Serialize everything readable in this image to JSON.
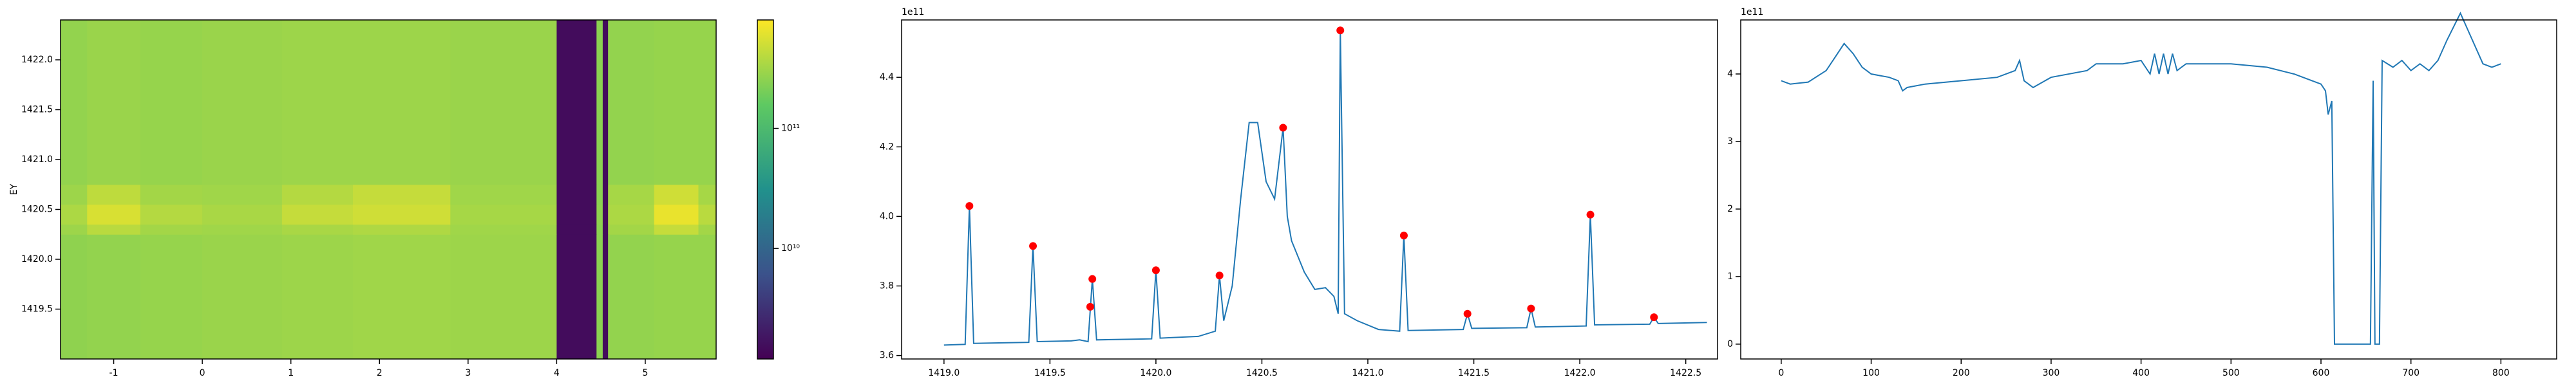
{
  "chart_data": [
    {
      "type": "heatmap",
      "ylabel": "EY",
      "x_edges": [
        -1.6,
        -1.3,
        -0.7,
        0.0,
        0.9,
        1.7,
        2.8,
        4.0,
        4.45,
        4.52,
        4.58,
        5.1,
        5.6,
        5.8
      ],
      "y_edges": [
        1419.0,
        1420.25,
        1420.35,
        1420.55,
        1420.75,
        1422.4
      ],
      "z": [
        [
          260000000000.0,
          270000000000.0,
          280000000000.0,
          290000000000.0,
          300000000000.0,
          310000000000.0,
          300000000000.0,
          1500000000.0,
          250000000000.0,
          1500000000.0,
          270000000000.0,
          280000000000.0,
          280000000000.0
        ],
        [
          300000000000.0,
          400000000000.0,
          320000000000.0,
          310000000000.0,
          340000000000.0,
          360000000000.0,
          310000000000.0,
          1500000000.0,
          250000000000.0,
          1500000000.0,
          320000000000.0,
          450000000000.0,
          320000000000.0
        ],
        [
          350000000000.0,
          550000000000.0,
          380000000000.0,
          340000000000.0,
          450000000000.0,
          500000000000.0,
          330000000000.0,
          1500000000.0,
          260000000000.0,
          1500000000.0,
          350000000000.0,
          650000000000.0,
          400000000000.0
        ],
        [
          300000000000.0,
          420000000000.0,
          320000000000.0,
          310000000000.0,
          380000000000.0,
          450000000000.0,
          310000000000.0,
          1500000000.0,
          250000000000.0,
          1500000000.0,
          330000000000.0,
          500000000000.0,
          330000000000.0
        ],
        [
          270000000000.0,
          290000000000.0,
          280000000000.0,
          290000000000.0,
          300000000000.0,
          300000000000.0,
          290000000000.0,
          1500000000.0,
          250000000000.0,
          1500000000.0,
          270000000000.0,
          280000000000.0,
          280000000000.0
        ]
      ],
      "xlim": [
        -1.6,
        5.8
      ],
      "xticks": [
        -1,
        0,
        1,
        2,
        3,
        4,
        5
      ],
      "ylim": [
        1419.0,
        1422.4
      ],
      "yticks": [
        1419.5,
        {
          "value": 1420,
          "label": "1420.0"
        },
        1420.5,
        {
          "value": 1421,
          "label": "1421.0"
        },
        1421.5,
        {
          "value": 1422,
          "label": "1422.0"
        }
      ],
      "colormap": "viridis",
      "color_scale": "log",
      "clim": [
        1200000000.0,
        800000000000.0
      ],
      "colorbar_ticks": [
        {
          "value": 10000000000.0,
          "label": "10¹⁰"
        },
        {
          "value": 100000000000.0,
          "label": "10¹¹"
        }
      ]
    },
    {
      "type": "line",
      "offset_label": "1e11",
      "series": [
        {
          "color": "#1f77b4",
          "x": [
            1419.0,
            1419.1,
            1419.12,
            1419.14,
            1419.4,
            1419.42,
            1419.44,
            1419.6,
            1419.64,
            1419.68,
            1419.7,
            1419.72,
            1419.98,
            1420.0,
            1420.02,
            1420.2,
            1420.28,
            1420.3,
            1420.32,
            1420.36,
            1420.4,
            1420.44,
            1420.48,
            1420.52,
            1420.56,
            1420.6,
            1420.62,
            1420.64,
            1420.7,
            1420.75,
            1420.8,
            1420.84,
            1420.86,
            1420.87,
            1420.89,
            1420.95,
            1421.05,
            1421.15,
            1421.17,
            1421.19,
            1421.45,
            1421.47,
            1421.49,
            1421.75,
            1421.77,
            1421.79,
            1422.03,
            1422.05,
            1422.07,
            1422.33,
            1422.35,
            1422.37,
            1422.6
          ],
          "values": [
            3.63,
            3.632,
            4.03,
            3.635,
            3.638,
            3.915,
            3.64,
            3.642,
            3.645,
            3.64,
            3.82,
            3.645,
            3.648,
            3.845,
            3.65,
            3.655,
            3.67,
            3.83,
            3.7,
            3.8,
            4.05,
            4.27,
            4.27,
            4.1,
            4.05,
            4.255,
            4.0,
            3.93,
            3.84,
            3.79,
            3.795,
            3.77,
            3.72,
            4.535,
            3.72,
            3.7,
            3.675,
            3.67,
            3.945,
            3.672,
            3.675,
            3.72,
            3.678,
            3.68,
            3.735,
            3.682,
            3.685,
            4.005,
            3.688,
            3.69,
            3.71,
            3.692,
            3.695
          ]
        }
      ],
      "markers": {
        "color": "#ff0000",
        "x": [
          1419.12,
          1419.42,
          1419.69,
          1419.7,
          1420.0,
          1420.3,
          1420.6,
          1420.87,
          1421.17,
          1421.47,
          1421.77,
          1422.05,
          1422.35
        ],
        "values": [
          4.03,
          3.915,
          3.74,
          3.82,
          3.845,
          3.83,
          4.255,
          4.535,
          3.945,
          3.72,
          3.735,
          4.005,
          3.71
        ]
      },
      "xlim": [
        1418.8,
        1422.65
      ],
      "xticks": [
        {
          "value": 1419,
          "label": "1419.0"
        },
        1419.5,
        {
          "value": 1420,
          "label": "1420.0"
        },
        1420.5,
        {
          "value": 1421,
          "label": "1421.0"
        },
        1421.5,
        {
          "value": 1422,
          "label": "1422.0"
        },
        1422.5
      ],
      "ylim": [
        3.59,
        4.565
      ],
      "yticks": [
        3.6,
        3.8,
        {
          "value": 4,
          "label": "4.0"
        },
        4.2,
        4.4
      ]
    },
    {
      "type": "line",
      "offset_label": "1e11",
      "series": [
        {
          "color": "#1f77b4",
          "x": [
            0,
            10,
            30,
            50,
            60,
            70,
            80,
            90,
            100,
            120,
            130,
            135,
            140,
            160,
            200,
            240,
            260,
            265,
            270,
            280,
            300,
            340,
            350,
            380,
            400,
            410,
            415,
            420,
            425,
            430,
            435,
            440,
            450,
            500,
            540,
            570,
            600,
            605,
            608,
            612,
            615,
            655,
            658,
            660,
            665,
            668,
            680,
            690,
            700,
            710,
            720,
            730,
            740,
            755,
            765,
            780,
            790,
            800
          ],
          "values": [
            3.9,
            3.85,
            3.88,
            4.05,
            4.25,
            4.45,
            4.3,
            4.1,
            4.0,
            3.95,
            3.9,
            3.75,
            3.8,
            3.85,
            3.9,
            3.95,
            4.05,
            4.2,
            3.9,
            3.8,
            3.95,
            4.05,
            4.15,
            4.15,
            4.2,
            4.0,
            4.3,
            4.0,
            4.3,
            4.0,
            4.3,
            4.05,
            4.15,
            4.15,
            4.1,
            4.0,
            3.85,
            3.75,
            3.4,
            3.6,
            0.0,
            0.0,
            3.9,
            0.0,
            0.0,
            4.2,
            4.1,
            4.2,
            4.05,
            4.15,
            4.05,
            4.2,
            4.5,
            4.9,
            4.6,
            4.15,
            4.1,
            4.15
          ]
        }
      ],
      "xlim": [
        -45,
        862
      ],
      "xticks": [
        0,
        100,
        200,
        300,
        400,
        500,
        600,
        700,
        800
      ],
      "ylim": [
        -0.22,
        4.8
      ],
      "yticks": [
        0,
        1,
        2,
        3,
        4
      ]
    }
  ]
}
